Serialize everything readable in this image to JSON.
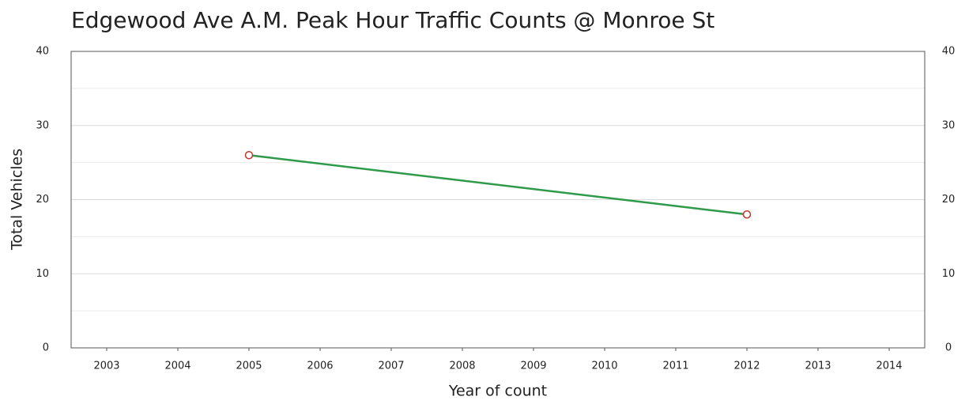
{
  "chart_data": {
    "type": "line",
    "title": "Edgewood Ave A.M. Peak Hour Traffic Counts @ Monroe St",
    "xlabel": "Year of count",
    "ylabel": "Total Vehicles",
    "x": [
      2005,
      2012
    ],
    "series": [
      {
        "name": "Total Vehicles",
        "color": "#2e9a4a",
        "marker_color": "#c0392b",
        "values": [
          26,
          18
        ]
      }
    ],
    "xlim": [
      2002.5,
      2014.5
    ],
    "xticks": [
      2003,
      2004,
      2005,
      2006,
      2007,
      2008,
      2009,
      2010,
      2011,
      2012,
      2013,
      2014
    ],
    "ylim": [
      0,
      40
    ],
    "yticks": [
      0,
      10,
      20,
      30,
      40
    ],
    "minor_yticks": [
      5,
      15,
      25,
      35
    ],
    "y2lim": [
      0,
      40
    ],
    "y2ticks": [
      0,
      10,
      20,
      30,
      40
    ],
    "grid": true
  }
}
